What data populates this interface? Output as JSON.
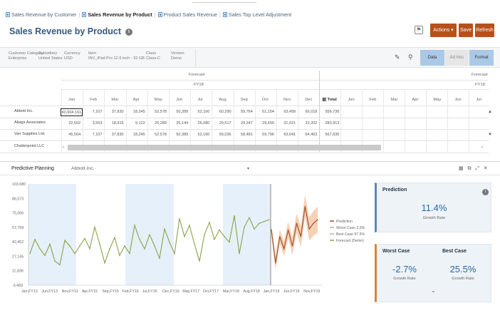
{
  "tabs": [
    {
      "label": "Sales Revenue by Customer",
      "active": false
    },
    {
      "label": "Sales Revenue by Product",
      "active": true
    },
    {
      "label": "Product Sales Revenue",
      "active": false
    },
    {
      "label": "Sales Top Level Adjustment",
      "active": false
    }
  ],
  "page_title": "Sales Revenue by Product",
  "buttons": {
    "actions": "Actions ▾",
    "save": "Save",
    "refresh": "Refresh"
  },
  "pov": [
    {
      "label": "Customer Category",
      "value": "Enterprise"
    },
    {
      "label": "Subsidiary",
      "value": "United States"
    },
    {
      "label": "Currency",
      "value": "USD"
    },
    {
      "label": "Item",
      "value": "INV_iPad Pro 12.9 inch - 32 GB"
    },
    {
      "label": "Class",
      "value": "Class-C"
    },
    {
      "label": "Version",
      "value": "Demo"
    }
  ],
  "toolbar": {
    "data": "Data",
    "ad_hoc": "Ad Hoc",
    "format": "Format"
  },
  "grid": {
    "scenario": "Forecast",
    "year": "FY18",
    "months_fy18": [
      "Jan",
      "Feb",
      "Mar",
      "Apr",
      "May",
      "Jun",
      "Jul",
      "Aug",
      "Sep",
      "Oct",
      "Nov",
      "Dec"
    ],
    "total_label": "Total",
    "months_fy19": [
      "Jan",
      "Feb",
      "Mar",
      "Apr",
      "May",
      "Jun",
      "Jul"
    ],
    "rows": [
      {
        "name": "Abbott Inc.",
        "values": [
          "40,904.161",
          "7,107",
          "37,830",
          "18,245",
          "52,578",
          "50,389",
          "52,160",
          "60,290",
          "59,764",
          "61,154",
          "63,499",
          "66,018"
        ],
        "total": "556,736"
      },
      {
        "name": "Aliaga Associates",
        "values": [
          "22,502",
          "3,553",
          "18,915",
          "9,122",
          "26,289",
          "25,144",
          "26,080",
          "29,517",
          "29,247",
          "29,650",
          "31,021",
          "32,202"
        ],
        "total": "283,913"
      },
      {
        "name": "Vari Supplies Ltd.",
        "values": [
          "45,504",
          "7,107",
          "37,830",
          "18,245",
          "52,578",
          "50,389",
          "52,160",
          "59,036",
          "58,481",
          "59,796",
          "63,041",
          "64,463"
        ],
        "total": "567,635"
      },
      {
        "name": "Chatterpoint LLC",
        "values": [],
        "total": ""
      }
    ]
  },
  "predictive": {
    "title": "Predictive Planning",
    "member": "Abbott Inc.",
    "y_ticks": [
      "103,680",
      "86,573",
      "75,066",
      "57,759",
      "42,452",
      "27,145",
      "11,838",
      "-3,469"
    ],
    "x_ticks": [
      "Jan,FY13",
      "Jun,FY13",
      "Nov,FY13",
      "Apr,FY15",
      "Sep,FY15",
      "Feb,FY16",
      "Jul,FY16",
      "Dec,FY16",
      "May,FY17",
      "Oct,FY17",
      "Mar,FY18",
      "Aug,FY18",
      "Jan,FY19",
      "Jun,FY19",
      "Nov,FY19"
    ],
    "legend": [
      "Prediction",
      "Worst Case 2.5%",
      "Best Case 97.5%",
      "Forecast (Demo)"
    ]
  },
  "chart_data": {
    "type": "line",
    "ylim": [
      -3469,
      103680
    ],
    "series": [
      {
        "name": "Forecast (Demo)",
        "values": [
          30000,
          45000,
          35000,
          28000,
          40000,
          22000,
          18000,
          44000,
          38000,
          30000,
          38000,
          46000,
          35000,
          58000,
          40000,
          20000,
          35000,
          47000,
          28000,
          38000,
          30000,
          60000,
          45000,
          35000,
          50000,
          38000,
          25000,
          56000,
          42000,
          30000,
          67000,
          48000,
          60000,
          40000,
          22000,
          50000,
          63000,
          45000,
          55000,
          48000,
          42000,
          70000,
          30000,
          58000,
          68000,
          56000,
          62000,
          64000,
          66000
        ]
      },
      {
        "name": "Prediction",
        "values": [
          55000,
          20000,
          48000,
          35000,
          55000,
          38000,
          62000,
          48000,
          80000,
          56000,
          62000,
          66000
        ]
      }
    ]
  },
  "prediction_card": {
    "title": "Prediction",
    "value": "11.4%",
    "label": "Growth Rate"
  },
  "worst_card": {
    "title": "Worst Case",
    "value": "-2.7%",
    "label": "Growth Rate"
  },
  "best_card": {
    "title": "Best Case",
    "value": "25.5%",
    "label": "Growth Rate"
  }
}
